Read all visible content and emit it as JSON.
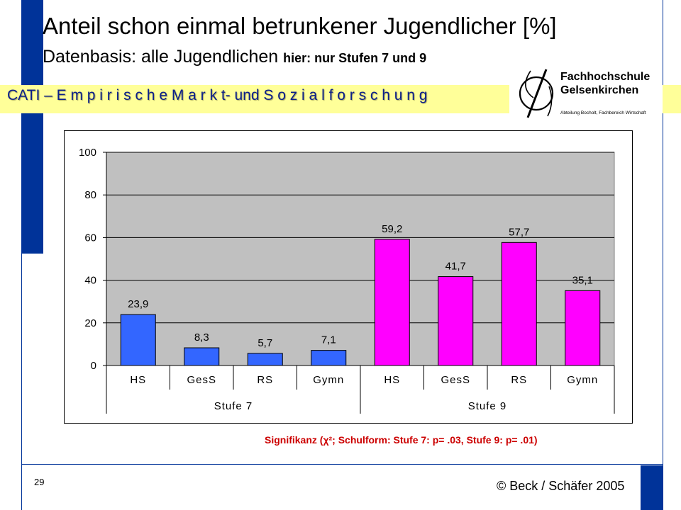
{
  "slide": {
    "title": "Anteil schon einmal betrunkener Jugendlicher  [%]",
    "subtitle_main": "Datenbasis: alle Jugendlichen ",
    "subtitle_bold": "hier: nur Stufen 7 und 9",
    "banner": "CATI – E m p i r i s c h e  M a r k t- und S o z i a l f o r s c h u n g",
    "logo": {
      "line1": "Fachhochschule",
      "line2": "Gelsenkirchen",
      "line3": "Abteilung Bocholt, Fachbereich Wirtschaft"
    },
    "significance": "Signifikanz (χ²; Schulform: Stufe 7: p= .03, Stufe 9: p= .01)",
    "page_number": "29",
    "copyright": "© Beck / Schäfer 2005"
  },
  "colors": {
    "frame_blue": "#003399",
    "banner_yellow": "#ffff99",
    "banner_text": "#0b1f8a",
    "plot_bg": "#c0c0c0",
    "stufe7_bar": "#3366ff",
    "stufe9_bar": "#ff00ff",
    "significance_text": "#cc0000"
  },
  "chart_data": {
    "type": "bar",
    "title": "",
    "xlabel": "",
    "ylabel": "",
    "ylim": [
      0,
      100
    ],
    "yticks": [
      0,
      20,
      40,
      60,
      80,
      100
    ],
    "grid": true,
    "legend": "none",
    "groups": [
      {
        "label": "Stufe 7",
        "color": "#3366ff",
        "categories": [
          "HS",
          "GesS",
          "RS",
          "Gymn"
        ],
        "values": [
          23.9,
          8.3,
          5.7,
          7.1
        ],
        "value_labels": [
          "23,9",
          "8,3",
          "5,7",
          "7,1"
        ]
      },
      {
        "label": "Stufe 9",
        "color": "#ff00ff",
        "categories": [
          "HS",
          "GesS",
          "RS",
          "Gymn"
        ],
        "values": [
          59.2,
          41.7,
          57.7,
          35.1
        ],
        "value_labels": [
          "59,2",
          "41,7",
          "57,7",
          "35,1"
        ]
      }
    ]
  }
}
